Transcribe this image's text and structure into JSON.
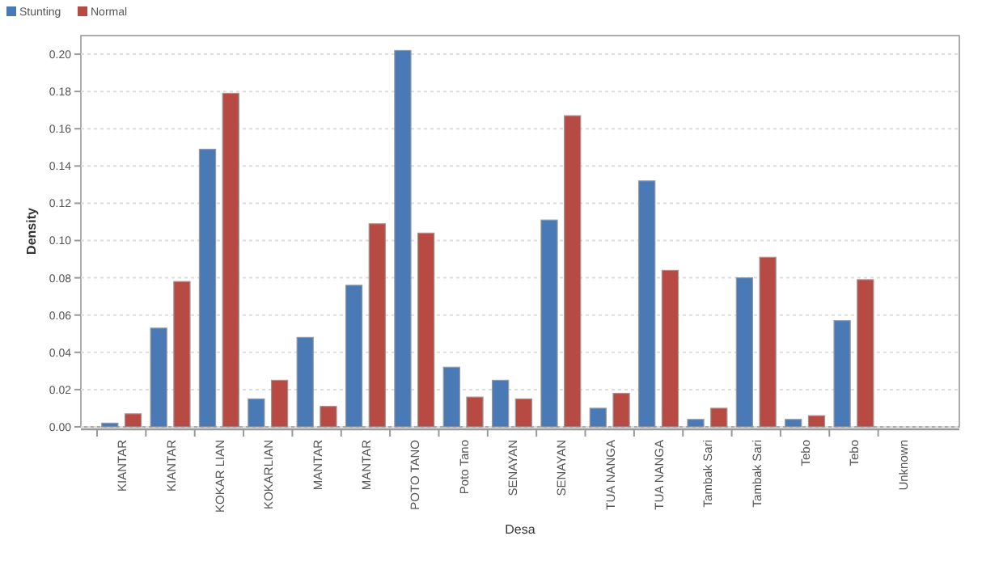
{
  "chart_data": {
    "type": "bar",
    "xlabel": "Desa",
    "ylabel": "Density",
    "categories": [
      "KIANTAR",
      "KIANTAR",
      "KOKAR LIAN",
      "KOKARLIAN",
      "MANTAR",
      "MANTAR",
      "POTO TANO",
      "Poto Tano",
      "SENAYAN",
      "SENAYAN",
      "TUA NANGA",
      "TUA NANGA",
      "Tambak Sari",
      "Tambak Sari",
      "Tebo",
      "Tebo",
      "Unknown"
    ],
    "series": [
      {
        "name": "Stunting",
        "color": "#4a7ab5",
        "values": [
          0.002,
          0.053,
          0.149,
          0.015,
          0.048,
          0.076,
          0.202,
          0.032,
          0.025,
          0.111,
          0.01,
          0.132,
          0.004,
          0.08,
          0.004,
          0.057,
          null
        ]
      },
      {
        "name": "Normal",
        "color": "#b84a44",
        "values": [
          0.007,
          0.078,
          0.179,
          0.025,
          0.011,
          0.109,
          0.104,
          0.016,
          0.015,
          0.167,
          0.018,
          0.084,
          0.01,
          0.091,
          0.006,
          0.079,
          null
        ]
      }
    ],
    "ylim": [
      0,
      0.21
    ],
    "yticks": [
      {
        "value": 0,
        "label": "0.00"
      },
      {
        "value": 0.02,
        "label": "0.02"
      },
      {
        "value": 0.04,
        "label": "0.04"
      },
      {
        "value": 0.06,
        "label": "0.06"
      },
      {
        "value": 0.08,
        "label": "0.08"
      },
      {
        "value": 0.1,
        "label": "0.10"
      },
      {
        "value": 0.12,
        "label": "0.12"
      },
      {
        "value": 0.14,
        "label": "0.14"
      },
      {
        "value": 0.16,
        "label": "0.16"
      },
      {
        "value": 0.18,
        "label": "0.18"
      },
      {
        "value": 0.2,
        "label": "0.20"
      }
    ],
    "grid": "y",
    "legend": "top left"
  }
}
